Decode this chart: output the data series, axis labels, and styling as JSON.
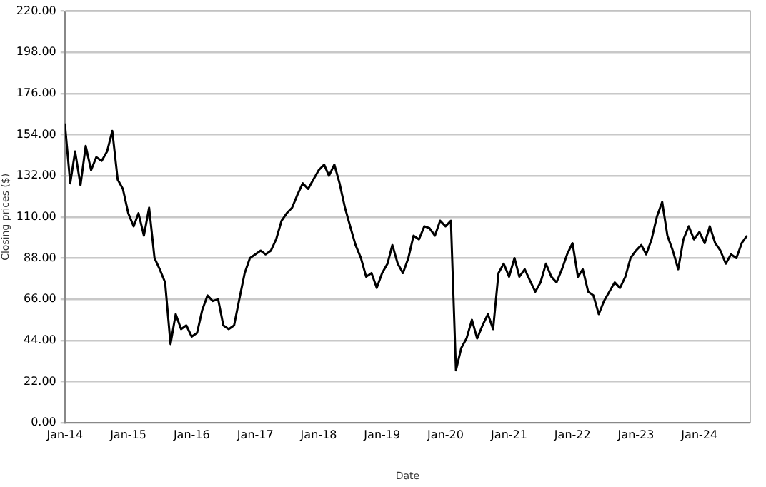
{
  "chart_data": {
    "type": "line",
    "xlabel": "Date",
    "ylabel": "Closing prices ($)",
    "x": [
      "2014-01",
      "2014-02",
      "2014-03",
      "2014-04",
      "2014-05",
      "2014-06",
      "2014-07",
      "2014-08",
      "2014-09",
      "2014-10",
      "2014-11",
      "2014-12",
      "2015-01",
      "2015-02",
      "2015-03",
      "2015-04",
      "2015-05",
      "2015-06",
      "2015-07",
      "2015-08",
      "2015-09",
      "2015-10",
      "2015-11",
      "2015-12",
      "2016-01",
      "2016-02",
      "2016-03",
      "2016-04",
      "2016-05",
      "2016-06",
      "2016-07",
      "2016-08",
      "2016-09",
      "2016-10",
      "2016-11",
      "2016-12",
      "2017-01",
      "2017-02",
      "2017-03",
      "2017-04",
      "2017-05",
      "2017-06",
      "2017-07",
      "2017-08",
      "2017-09",
      "2017-10",
      "2017-11",
      "2017-12",
      "2018-01",
      "2018-02",
      "2018-03",
      "2018-04",
      "2018-05",
      "2018-06",
      "2018-07",
      "2018-08",
      "2018-09",
      "2018-10",
      "2018-11",
      "2018-12",
      "2019-01",
      "2019-02",
      "2019-03",
      "2019-04",
      "2019-05",
      "2019-06",
      "2019-07",
      "2019-08",
      "2019-09",
      "2019-10",
      "2019-11",
      "2019-12",
      "2020-01",
      "2020-02",
      "2020-03",
      "2020-04",
      "2020-05",
      "2020-06",
      "2020-07",
      "2020-08",
      "2020-09",
      "2020-10",
      "2020-11",
      "2020-12",
      "2021-01",
      "2021-02",
      "2021-03",
      "2021-04",
      "2021-05",
      "2021-06",
      "2021-07",
      "2021-08",
      "2021-09",
      "2021-10",
      "2021-11",
      "2021-12",
      "2022-01",
      "2022-02",
      "2022-03",
      "2022-04",
      "2022-05",
      "2022-06",
      "2022-07",
      "2022-08",
      "2022-09",
      "2022-10",
      "2022-11",
      "2022-12",
      "2023-01",
      "2023-02",
      "2023-03",
      "2023-04",
      "2023-05",
      "2023-06",
      "2023-07",
      "2023-08",
      "2023-09",
      "2023-10",
      "2023-11",
      "2023-12",
      "2024-01",
      "2024-02",
      "2024-03",
      "2024-04",
      "2024-05",
      "2024-06",
      "2024-07",
      "2024-08",
      "2024-09",
      "2024-10"
    ],
    "series": [
      {
        "color": "#000000",
        "values": [
          160,
          128,
          145,
          127,
          148,
          135,
          142,
          140,
          145,
          156,
          130,
          125,
          112,
          105,
          112,
          100,
          115,
          88,
          82,
          75,
          42,
          58,
          50,
          52,
          46,
          48,
          60,
          68,
          65,
          66,
          52,
          50,
          52,
          66,
          80,
          88,
          90,
          92,
          90,
          92,
          98,
          108,
          112,
          115,
          122,
          128,
          125,
          130,
          135,
          138,
          132,
          138,
          128,
          115,
          105,
          95,
          88,
          78,
          80,
          72,
          80,
          85,
          95,
          85,
          80,
          88,
          100,
          98,
          105,
          104,
          100,
          108,
          105,
          108,
          28,
          40,
          45,
          55,
          45,
          52,
          58,
          50,
          80,
          85,
          78,
          88,
          78,
          82,
          76,
          70,
          75,
          85,
          78,
          75,
          82,
          90,
          96,
          78,
          82,
          70,
          68,
          58,
          65,
          70,
          75,
          72,
          78,
          88,
          92,
          95,
          90,
          98,
          110,
          118,
          100,
          92,
          82,
          98,
          105,
          98,
          102,
          96,
          105,
          96,
          92,
          85,
          90,
          88,
          96,
          100
        ]
      }
    ],
    "xlim": [
      "2014-01",
      "2024-10-20"
    ],
    "xticks": [
      {
        "value": "2014-01",
        "label": "Jan-14"
      },
      {
        "value": "2015-01",
        "label": "Jan-15"
      },
      {
        "value": "2016-01",
        "label": "Jan-16"
      },
      {
        "value": "2017-01",
        "label": "Jan-17"
      },
      {
        "value": "2018-01",
        "label": "Jan-18"
      },
      {
        "value": "2019-01",
        "label": "Jan-19"
      },
      {
        "value": "2020-01",
        "label": "Jan-20"
      },
      {
        "value": "2021-01",
        "label": "Jan-21"
      },
      {
        "value": "2022-01",
        "label": "Jan-22"
      },
      {
        "value": "2023-01",
        "label": "Jan-23"
      },
      {
        "value": "2024-01",
        "label": "Jan-24"
      }
    ],
    "ylim": [
      0,
      220
    ],
    "yticks": [
      {
        "value": 0,
        "label": "0.00"
      },
      {
        "value": 22,
        "label": "22.00"
      },
      {
        "value": 44,
        "label": "44.00"
      },
      {
        "value": 66,
        "label": "66.00"
      },
      {
        "value": 88,
        "label": "88.00"
      },
      {
        "value": 110,
        "label": "110.00"
      },
      {
        "value": 132,
        "label": "132.00"
      },
      {
        "value": 154,
        "label": "154.00"
      },
      {
        "value": 176,
        "label": "176.00"
      },
      {
        "value": 198,
        "label": "198.00"
      },
      {
        "value": 220,
        "label": "220.00"
      }
    ],
    "grid": "y",
    "marker": "none",
    "line_style": "solid",
    "legend": false
  }
}
